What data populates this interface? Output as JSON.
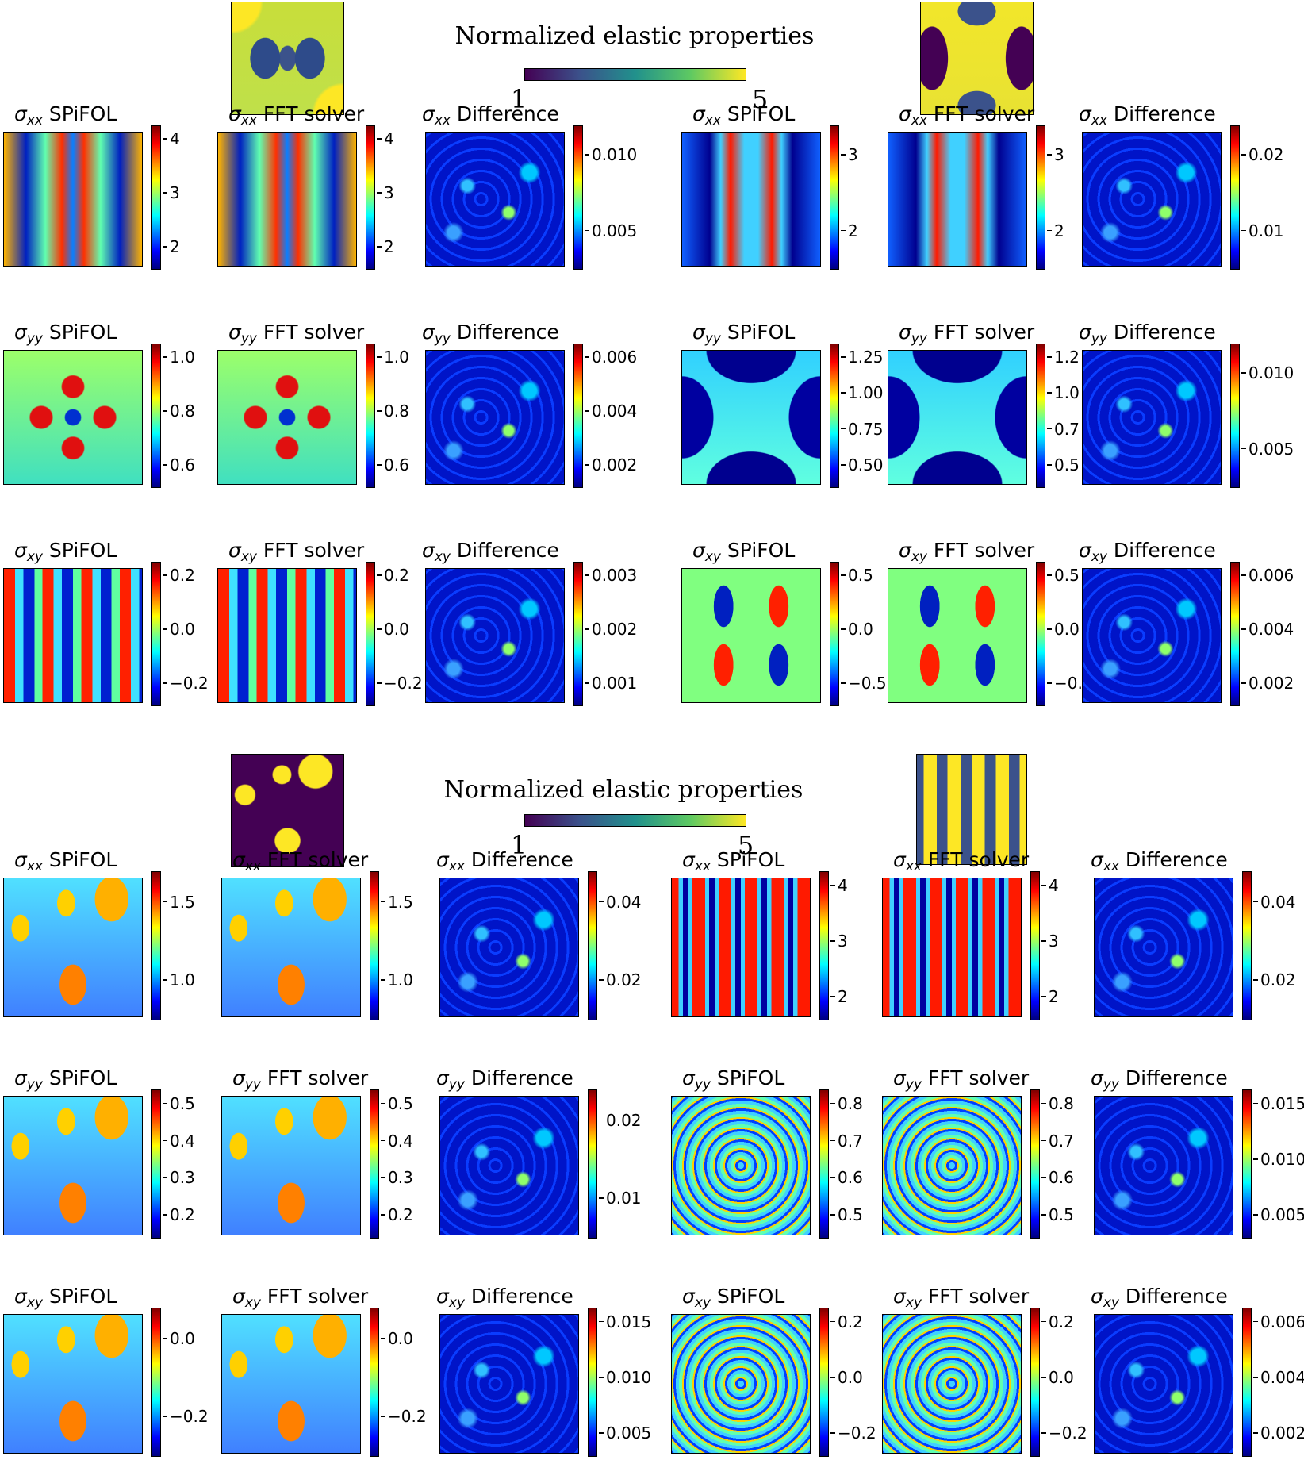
{
  "colors": {
    "viridis": [
      "#440154",
      "#3b528b",
      "#21918c",
      "#5ec962",
      "#fde725"
    ],
    "jet": [
      "#00007f",
      "#0000ff",
      "#007fff",
      "#00ffff",
      "#7fff7f",
      "#ffff00",
      "#ff7f00",
      "#ff0000",
      "#7f0000"
    ]
  },
  "groups": [
    {
      "title": "Normalized elastic properties",
      "bar_min_label": "1",
      "bar_max_label": "5",
      "left_micro": "smooth periodic blobs (dark holes on yellow)",
      "right_micro": "bone-like pattern",
      "left": [
        {
          "field": "xx",
          "panels": [
            {
              "title_suffix": "SPiFOL",
              "ticks": [
                "4",
                "3",
                "2"
              ]
            },
            {
              "title_suffix": "FFT solver",
              "ticks": [
                "4",
                "3",
                "2"
              ]
            },
            {
              "title_suffix": "Difference",
              "ticks": [
                "0.010",
                "0.005"
              ]
            }
          ]
        },
        {
          "field": "yy",
          "panels": [
            {
              "title_suffix": "SPiFOL",
              "ticks": [
                "1.0",
                "0.8",
                "0.6"
              ]
            },
            {
              "title_suffix": "FFT solver",
              "ticks": [
                "1.0",
                "0.8",
                "0.6"
              ]
            },
            {
              "title_suffix": "Difference",
              "ticks": [
                "0.006",
                "0.004",
                "0.002"
              ]
            }
          ]
        },
        {
          "field": "xy",
          "panels": [
            {
              "title_suffix": "SPiFOL",
              "ticks": [
                "0.2",
                "0.0",
                "−0.2"
              ]
            },
            {
              "title_suffix": "FFT solver",
              "ticks": [
                "0.2",
                "0.0",
                "−0.2"
              ]
            },
            {
              "title_suffix": "Difference",
              "ticks": [
                "0.003",
                "0.002",
                "0.001"
              ]
            }
          ]
        }
      ],
      "right": [
        {
          "field": "xx",
          "panels": [
            {
              "title_suffix": "SPiFOL",
              "ticks": [
                "3",
                "2"
              ]
            },
            {
              "title_suffix": "FFT solver",
              "ticks": [
                "3",
                "2"
              ]
            },
            {
              "title_suffix": "Difference",
              "ticks": [
                "0.02",
                "0.01"
              ]
            }
          ]
        },
        {
          "field": "yy",
          "panels": [
            {
              "title_suffix": "SPiFOL",
              "ticks": [
                "1.25",
                "1.00",
                "0.75",
                "0.50"
              ]
            },
            {
              "title_suffix": "FFT solver",
              "ticks": [
                "1.2",
                "1.0",
                "0.7",
                "0.5"
              ]
            },
            {
              "title_suffix": "Difference",
              "ticks": [
                "0.010",
                "0.005"
              ]
            }
          ]
        },
        {
          "field": "xy",
          "panels": [
            {
              "title_suffix": "SPiFOL",
              "ticks": [
                "0.5",
                "0.0",
                "−0.5"
              ]
            },
            {
              "title_suffix": "FFT solver",
              "ticks": [
                "0.5",
                "0.0",
                "−0."
              ]
            },
            {
              "title_suffix": "Difference",
              "ticks": [
                "0.006",
                "0.004",
                "0.002"
              ]
            }
          ]
        }
      ]
    },
    {
      "title": "Normalized elastic properties",
      "bar_min_label": "1",
      "bar_max_label": "5",
      "left_micro": "circular inclusions",
      "right_micro": "striped chain pattern",
      "left": [
        {
          "field": "xx",
          "panels": [
            {
              "title_suffix": "SPiFOL",
              "ticks": [
                "1.5",
                "1.0"
              ]
            },
            {
              "title_suffix": "FFT solver",
              "ticks": [
                "1.5",
                "1.0"
              ]
            },
            {
              "title_suffix": "Difference",
              "ticks": [
                "0.04",
                "0.02"
              ]
            }
          ]
        },
        {
          "field": "yy",
          "panels": [
            {
              "title_suffix": "SPiFOL",
              "ticks": [
                "0.5",
                "0.4",
                "0.3",
                "0.2"
              ]
            },
            {
              "title_suffix": "FFT solver",
              "ticks": [
                "0.5",
                "0.4",
                "0.3",
                "0.2"
              ]
            },
            {
              "title_suffix": "Difference",
              "ticks": [
                "0.02",
                "0.01"
              ]
            }
          ]
        },
        {
          "field": "xy",
          "panels": [
            {
              "title_suffix": "SPiFOL",
              "ticks": [
                "0.0",
                "−0.2"
              ]
            },
            {
              "title_suffix": "FFT solver",
              "ticks": [
                "0.0",
                "−0.2"
              ]
            },
            {
              "title_suffix": "Difference",
              "ticks": [
                "0.015",
                "0.010",
                "0.005"
              ]
            }
          ]
        }
      ],
      "right": [
        {
          "field": "xx",
          "panels": [
            {
              "title_suffix": "SPiFOL",
              "ticks": [
                "4",
                "3",
                "2"
              ]
            },
            {
              "title_suffix": "FFT solver",
              "ticks": [
                "4",
                "3",
                "2"
              ]
            },
            {
              "title_suffix": "Difference",
              "ticks": [
                "0.04",
                "0.02"
              ]
            }
          ]
        },
        {
          "field": "yy",
          "panels": [
            {
              "title_suffix": "SPiFOL",
              "ticks": [
                "0.8",
                "0.7",
                "0.6",
                "0.5"
              ]
            },
            {
              "title_suffix": "FFT solver",
              "ticks": [
                "0.8",
                "0.7",
                "0.6",
                "0.5"
              ]
            },
            {
              "title_suffix": "Difference",
              "ticks": [
                "0.015",
                "0.010",
                "0.005"
              ]
            }
          ]
        },
        {
          "field": "xy",
          "panels": [
            {
              "title_suffix": "SPiFOL",
              "ticks": [
                "0.2",
                "0.0",
                "−0.2"
              ]
            },
            {
              "title_suffix": "FFT solver",
              "ticks": [
                "0.2",
                "0.0",
                "−0.2"
              ]
            },
            {
              "title_suffix": "Difference",
              "ticks": [
                "0.006",
                "0.004",
                "0.002"
              ]
            }
          ]
        }
      ]
    }
  ],
  "symbol": "σ"
}
